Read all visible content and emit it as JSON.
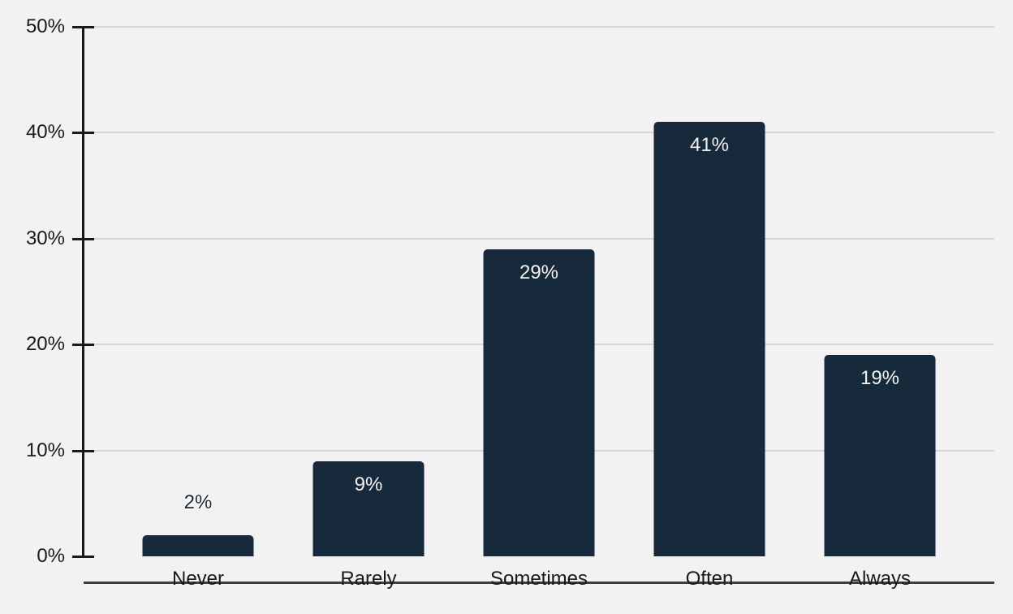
{
  "chart_data": {
    "type": "bar",
    "title": "",
    "xlabel": "",
    "ylabel": "",
    "categories": [
      "Never",
      "Rarely",
      "Sometimes",
      "Often",
      "Always"
    ],
    "values": [
      2,
      9,
      29,
      41,
      19
    ],
    "value_labels": [
      "2%",
      "9%",
      "29%",
      "41%",
      "19%"
    ],
    "ylim": [
      0,
      50
    ],
    "yticks": [
      {
        "value": 0,
        "label": "0%"
      },
      {
        "value": 10,
        "label": "10%"
      },
      {
        "value": 20,
        "label": "20%"
      },
      {
        "value": 30,
        "label": "30%"
      },
      {
        "value": 40,
        "label": "40%"
      },
      {
        "value": 50,
        "label": "50%"
      }
    ],
    "grid": true,
    "legend_position": "none",
    "label_outside_threshold": 5
  },
  "colors": {
    "background": "#f2f2f2",
    "bar": "#172a3c",
    "gridline": "#d5d5d5",
    "y_axis": "#1a1a1a",
    "x_axis": "#3f3f3f",
    "axis_text": "#1a1a1a",
    "value_label_inside": "#f2f2f2",
    "value_label_outside": "#172a3c"
  }
}
